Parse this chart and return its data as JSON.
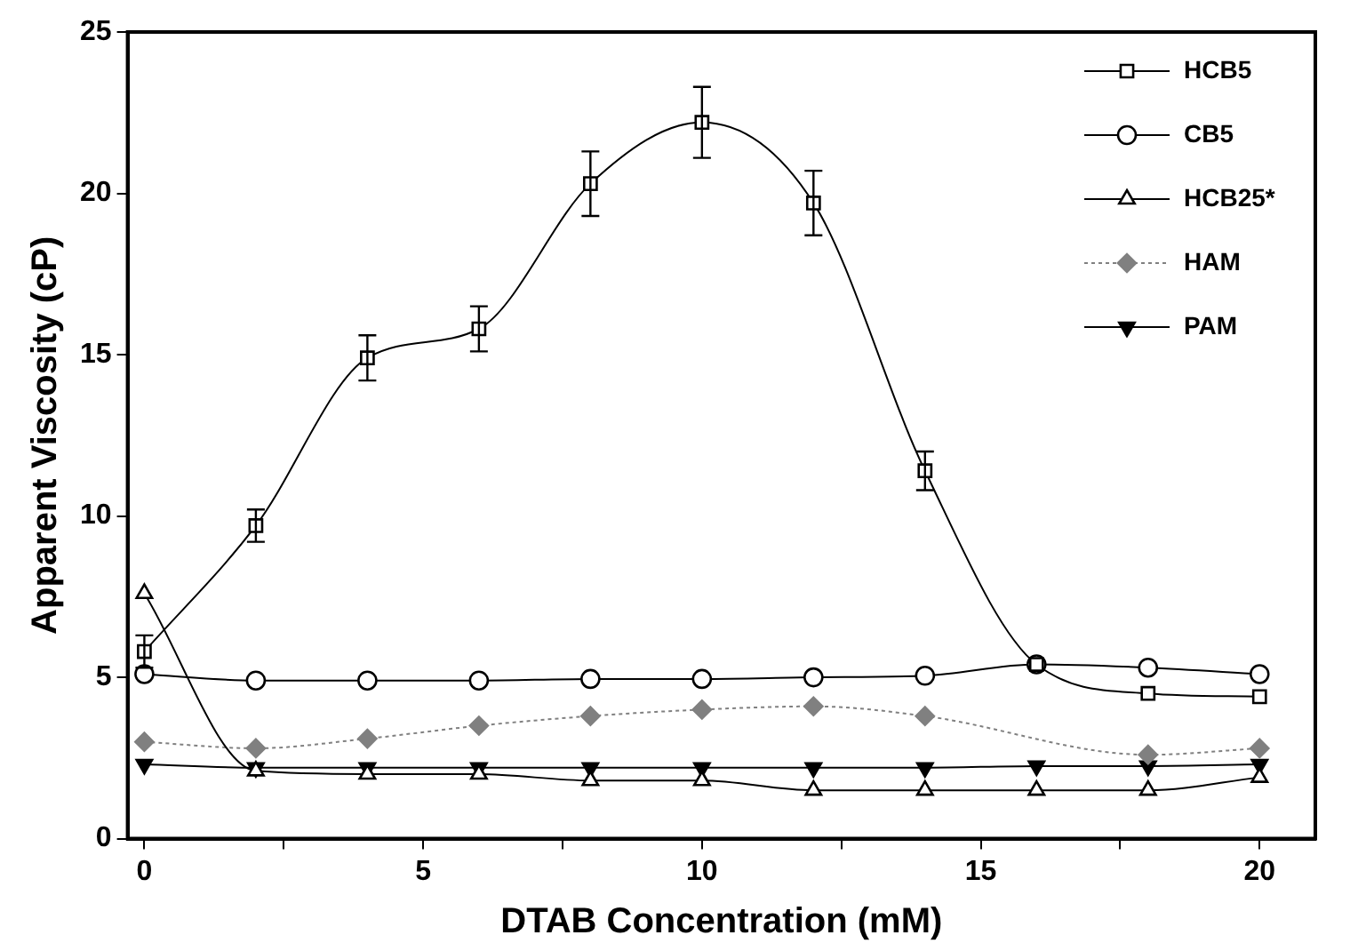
{
  "chart_data": {
    "type": "line",
    "xlabel": "DTAB Concentration (mM)",
    "ylabel": "Apparent Viscosity (cP)",
    "x": [
      0,
      2,
      4,
      6,
      8,
      10,
      12,
      14,
      16,
      18,
      20
    ],
    "xlim": [
      -0.3,
      21
    ],
    "xticks": [
      0,
      {
        "value": 2.5,
        "label": null
      },
      5,
      {
        "value": 7.5,
        "label": null
      },
      10,
      {
        "value": 12.5,
        "label": null
      },
      15,
      {
        "value": 17.5,
        "label": null
      },
      20
    ],
    "ylim": [
      0,
      25
    ],
    "yticks": [
      0,
      5,
      10,
      15,
      20,
      25
    ],
    "grid": false,
    "legend": "top right",
    "series": [
      {
        "name": "HCB5",
        "color": "#000000",
        "marker": "square",
        "line_style": "solid",
        "values": [
          5.8,
          9.7,
          14.9,
          15.8,
          20.3,
          22.2,
          19.7,
          11.4,
          5.4,
          4.5,
          4.4
        ],
        "errors": [
          0.5,
          0.5,
          0.7,
          0.7,
          1.0,
          1.1,
          1.0,
          0.6,
          null,
          null,
          null
        ]
      },
      {
        "name": "CB5",
        "color": "#000000",
        "marker": "circle",
        "line_style": "solid",
        "values": [
          5.1,
          4.9,
          4.9,
          4.9,
          4.95,
          4.95,
          5.0,
          5.05,
          5.4,
          5.3,
          5.1
        ]
      },
      {
        "name": "HCB25*",
        "color": "#000000",
        "marker": "triangle",
        "line_style": "solid",
        "values": [
          7.6,
          2.1,
          2.0,
          2.0,
          1.8,
          1.8,
          1.5,
          1.5,
          1.5,
          1.5,
          1.9
        ]
      },
      {
        "name": "HAM",
        "color": "#808080",
        "marker": "diamond",
        "line_style": "dotted",
        "values": [
          3.0,
          2.8,
          3.1,
          3.5,
          3.8,
          4.0,
          4.1,
          3.8,
          null,
          2.6,
          2.8
        ]
      },
      {
        "name": "PAM",
        "color": "#000000",
        "marker": "triangle_down",
        "line_style": "solid",
        "values": [
          2.3,
          2.2,
          2.2,
          2.2,
          2.2,
          2.2,
          2.2,
          2.2,
          2.25,
          2.25,
          2.3
        ]
      }
    ]
  }
}
